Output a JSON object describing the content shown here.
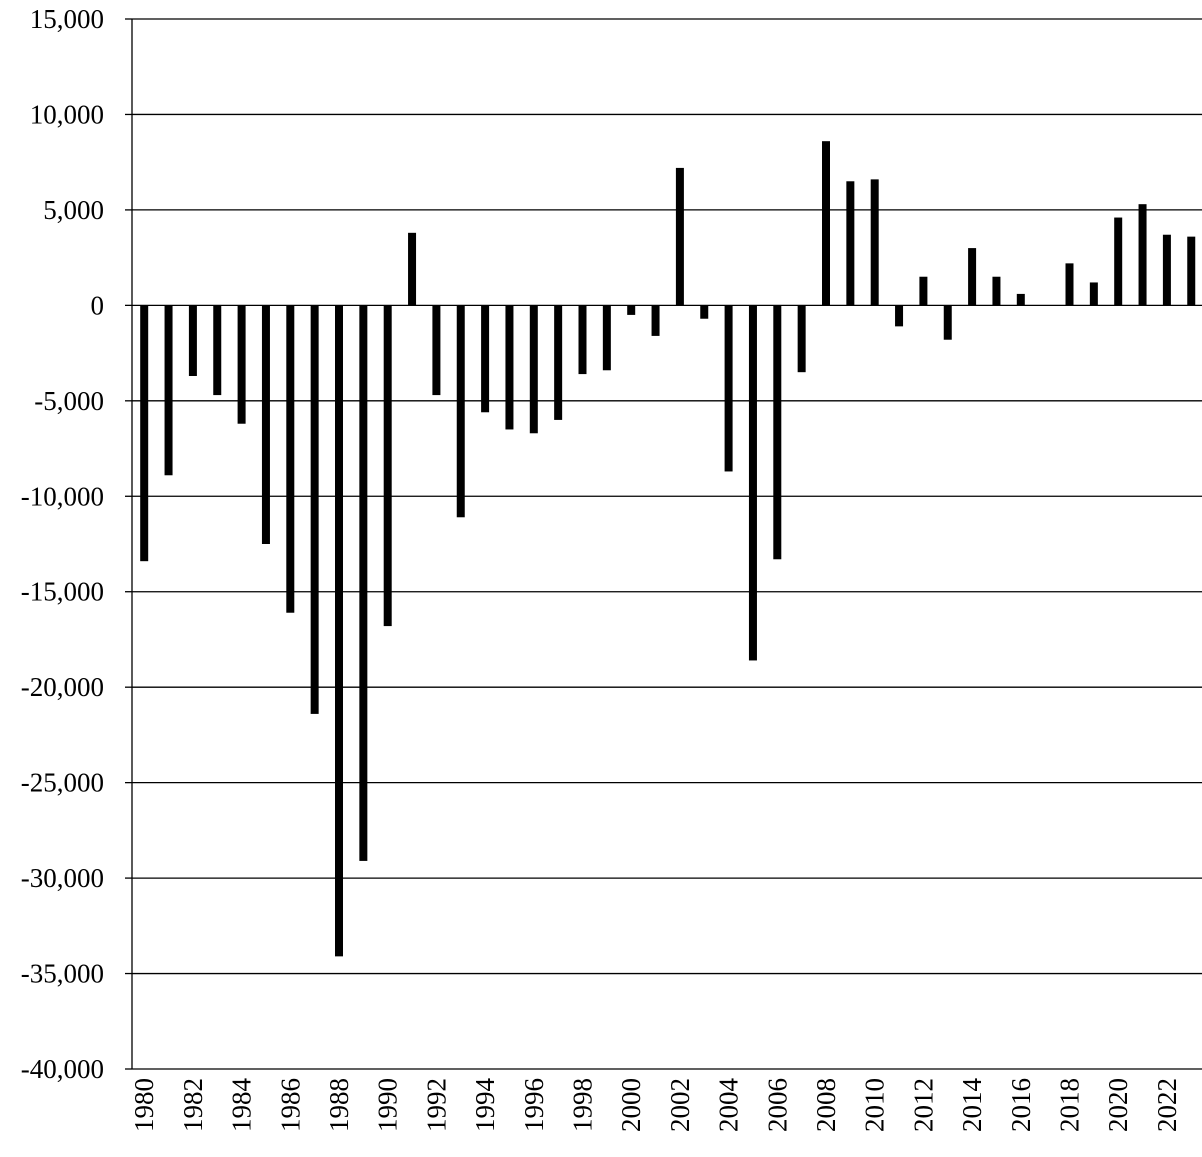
{
  "chart_data": {
    "type": "bar",
    "title": "",
    "xlabel": "",
    "ylabel": "",
    "ylim": [
      -40000,
      15000
    ],
    "y_ticks": [
      15000,
      10000,
      5000,
      0,
      -5000,
      -10000,
      -15000,
      -20000,
      -25000,
      -30000,
      -35000,
      -40000
    ],
    "y_tick_labels": [
      "15,000",
      "10,000",
      "5,000",
      "0",
      "-5,000",
      "-10,000",
      "-15,000",
      "-20,000",
      "-25,000",
      "-30,000",
      "-35,000",
      "-40,000"
    ],
    "grid": true,
    "legend": "none",
    "bar_color": "#000000",
    "categories": [
      "1980",
      "1981",
      "1982",
      "1983",
      "1984",
      "1985",
      "1986",
      "1987",
      "1988",
      "1989",
      "1990",
      "1991",
      "1992",
      "1993",
      "1994",
      "1995",
      "1996",
      "1997",
      "1998",
      "1999",
      "2000",
      "2001",
      "2002",
      "2003",
      "2004",
      "2005",
      "2006",
      "2007",
      "2008",
      "2009",
      "2010",
      "2011",
      "2012",
      "2013",
      "2014",
      "2015",
      "2016",
      "2017",
      "2018",
      "2019",
      "2020",
      "2021",
      "2022",
      "2023"
    ],
    "x_tick_labels": [
      "1980",
      "1982",
      "1984",
      "1986",
      "1988",
      "1990",
      "1992",
      "1994",
      "1996",
      "1998",
      "2000",
      "2002",
      "2004",
      "2006",
      "2008",
      "2010",
      "2012",
      "2014",
      "2016",
      "2018",
      "2020",
      "2022"
    ],
    "values": [
      -13400,
      -8900,
      -3700,
      -4700,
      -6200,
      -12500,
      -16100,
      -21400,
      -34100,
      -29100,
      -16800,
      3800,
      -4700,
      -11100,
      -5600,
      -6500,
      -6700,
      -6000,
      -3600,
      -3400,
      -500,
      -1600,
      7200,
      -700,
      -8700,
      -18600,
      -13300,
      -3500,
      8600,
      6500,
      6600,
      -1100,
      1500,
      -1800,
      3000,
      1500,
      600,
      0,
      2200,
      1200,
      4600,
      5300,
      3700,
      3600
    ]
  }
}
